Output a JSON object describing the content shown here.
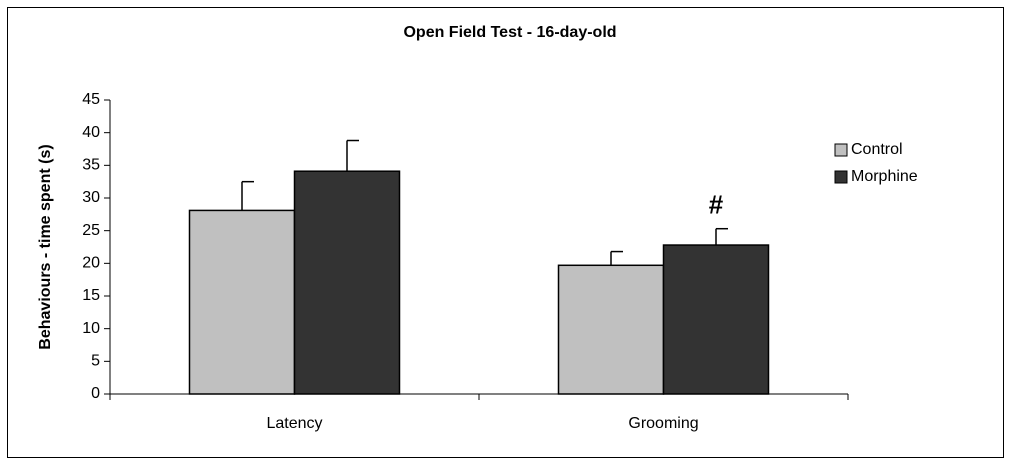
{
  "chart_data": {
    "type": "bar",
    "title": "Open Field Test - 16-day-old",
    "y_label": "Behaviours - time spent (s)",
    "categories": [
      "Latency",
      "Grooming"
    ],
    "series": [
      {
        "name": "Control",
        "color": "#c0c0c0",
        "values": [
          28.1,
          19.7
        ],
        "errors": [
          4.4,
          2.1
        ]
      },
      {
        "name": "Morphine",
        "color": "#333333",
        "values": [
          34.1,
          22.8
        ],
        "errors": [
          4.7,
          2.5
        ]
      }
    ],
    "annotations": [
      {
        "text": "#",
        "category": "Grooming",
        "series": "Morphine"
      }
    ],
    "ylim": [
      0,
      45
    ],
    "yticks": [
      0,
      5,
      10,
      15,
      20,
      25,
      30,
      35,
      40,
      45
    ],
    "legend": "right"
  }
}
